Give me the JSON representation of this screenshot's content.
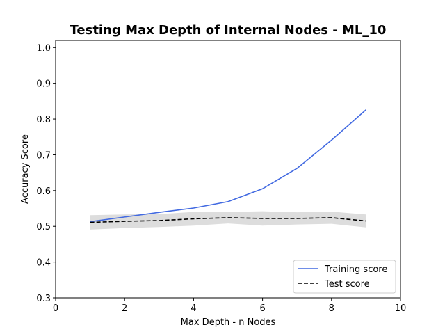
{
  "chart_data": {
    "type": "line",
    "title": "Testing Max Depth of Internal Nodes - ML_10",
    "xlabel": "Max Depth - n Nodes",
    "ylabel": "Accuracy Score",
    "xlim": [
      0,
      10
    ],
    "ylim": [
      0.3,
      1.02
    ],
    "x_ticks": [
      0,
      2,
      4,
      6,
      8,
      10
    ],
    "y_ticks": [
      0.3,
      0.4,
      0.5,
      0.6,
      0.7,
      0.8,
      0.9,
      1.0
    ],
    "x_tick_labels": [
      "0",
      "2",
      "4",
      "6",
      "8",
      "10"
    ],
    "y_tick_labels": [
      "0.3",
      "0.4",
      "0.5",
      "0.6",
      "0.7",
      "0.8",
      "0.9",
      "1.0"
    ],
    "grid": false,
    "legend_position": "lower-right",
    "series": [
      {
        "name": "Training score",
        "style": "solid",
        "color": "#4169e1",
        "x": [
          1,
          2,
          3,
          4,
          5,
          6,
          7,
          8,
          9
        ],
        "values": [
          0.513,
          0.526,
          0.539,
          0.551,
          0.569,
          0.605,
          0.662,
          0.741,
          0.826
        ]
      },
      {
        "name": "Test score",
        "style": "dashed",
        "color": "#000000",
        "x": [
          1,
          2,
          3,
          4,
          5,
          6,
          7,
          8,
          9
        ],
        "values": [
          0.511,
          0.514,
          0.516,
          0.521,
          0.524,
          0.522,
          0.522,
          0.524,
          0.515
        ],
        "band_lower": [
          0.491,
          0.495,
          0.498,
          0.502,
          0.508,
          0.502,
          0.505,
          0.507,
          0.497
        ],
        "band_upper": [
          0.531,
          0.533,
          0.534,
          0.54,
          0.54,
          0.542,
          0.539,
          0.541,
          0.533
        ],
        "band_color": "#dddddd"
      }
    ]
  }
}
